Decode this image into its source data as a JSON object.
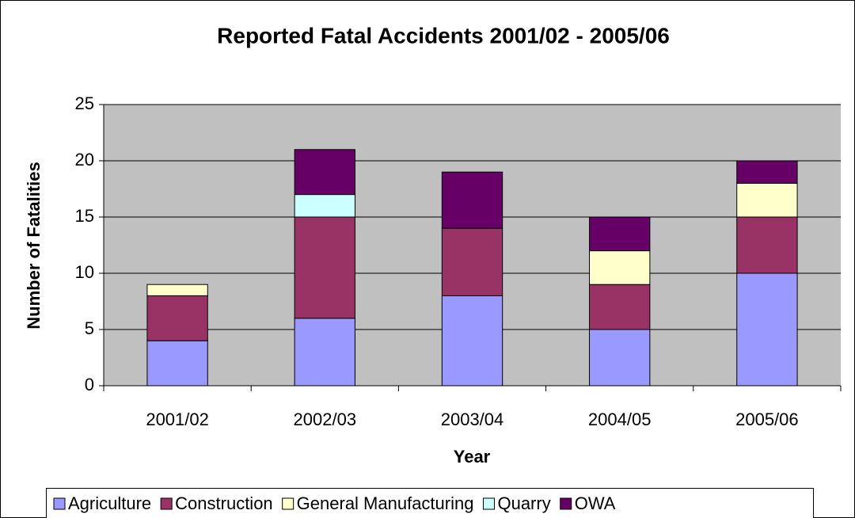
{
  "chart_data": {
    "type": "bar",
    "stacked": true,
    "title": "Reported Fatal Accidents 2001/02 - 2005/06",
    "x_label": "Year",
    "y_label": "Number of Fatalities",
    "categories": [
      "2001/02",
      "2002/03",
      "2003/04",
      "2004/05",
      "2005/06"
    ],
    "series": [
      {
        "name": "Agriculture",
        "color": "#9999ff",
        "values": [
          4,
          6,
          8,
          5,
          10
        ]
      },
      {
        "name": "Construction",
        "color": "#993366",
        "values": [
          4,
          9,
          6,
          4,
          5
        ]
      },
      {
        "name": "General Manufacturing",
        "color": "#ffffcc",
        "values": [
          1,
          0,
          0,
          3,
          3
        ]
      },
      {
        "name": "Quarry",
        "color": "#ccffff",
        "values": [
          0,
          2,
          0,
          0,
          0
        ]
      },
      {
        "name": "OWA",
        "color": "#660066",
        "values": [
          0,
          4,
          5,
          3,
          2
        ]
      }
    ],
    "ylim": [
      0,
      25
    ],
    "yticks": [
      0,
      5,
      10,
      15,
      20,
      25
    ],
    "grid": true,
    "legend": "bottom"
  }
}
